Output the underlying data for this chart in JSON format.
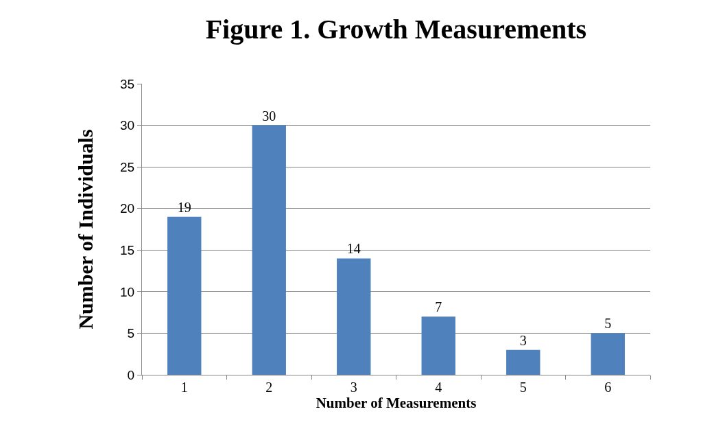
{
  "chart_data": {
    "type": "bar",
    "title": "Figure 1. Growth Measurements",
    "xlabel": "Number of Measurements",
    "ylabel": "Number of Individuals",
    "categories": [
      "1",
      "2",
      "3",
      "4",
      "5",
      "6"
    ],
    "values": [
      19,
      30,
      14,
      7,
      3,
      5
    ],
    "color": "#4f81bd",
    "ylim": [
      0,
      35
    ],
    "yticks": [
      0,
      5,
      10,
      15,
      20,
      25,
      30,
      35
    ],
    "grid": "y",
    "data_labels": true
  }
}
